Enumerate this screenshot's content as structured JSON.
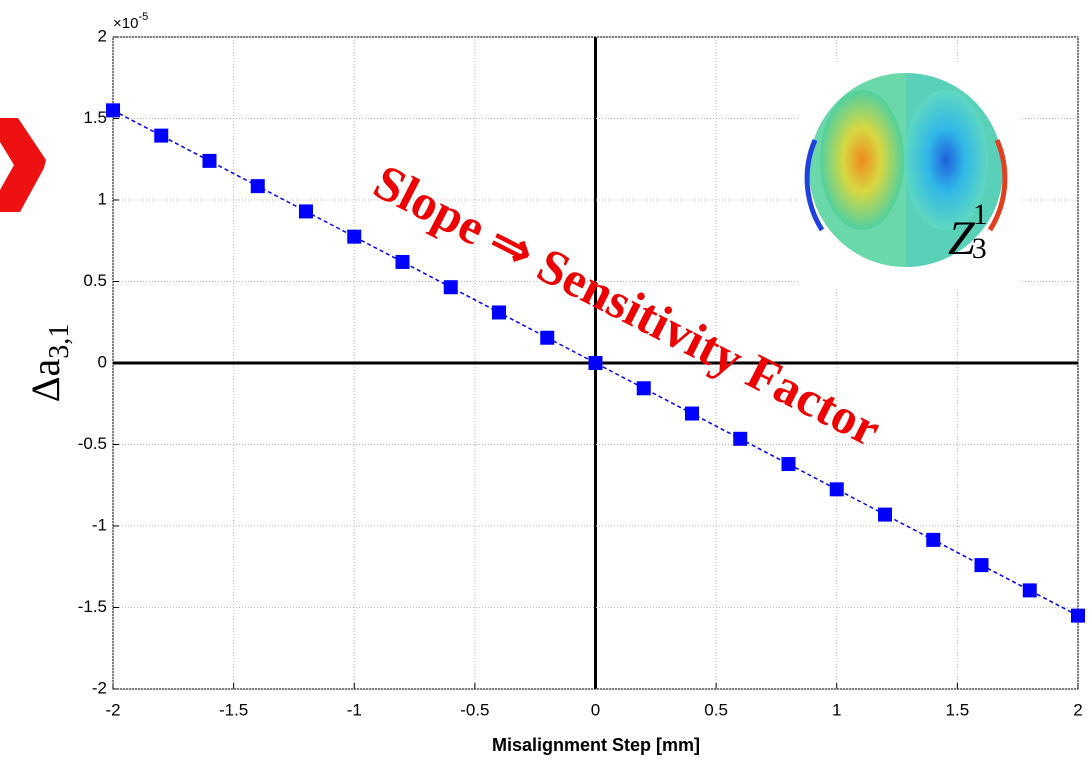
{
  "chart_data": {
    "type": "line",
    "xlabel": "Misalignment Step [mm]",
    "ylabel": {
      "text": "Δa",
      "subscript": "3,1"
    },
    "y_multiplier": {
      "base": "×10",
      "exponent": "-5"
    },
    "annotation": "Slope ⇒ Sensitivity Factor",
    "inset_label": {
      "text": "Z",
      "subscript": "3",
      "superscript": "1"
    },
    "x": [
      -2,
      -1.8,
      -1.6,
      -1.4,
      -1.2,
      -1,
      -0.8,
      -0.6,
      -0.4,
      -0.2,
      0,
      0.2,
      0.4,
      0.6,
      0.8,
      1,
      1.2,
      1.4,
      1.6,
      1.8,
      2
    ],
    "series": [
      {
        "color": "#0000ff",
        "values": [
          1.55,
          1.395,
          1.24,
          1.085,
          0.93,
          0.775,
          0.62,
          0.465,
          0.31,
          0.155,
          0,
          -0.155,
          -0.31,
          -0.465,
          -0.62,
          -0.775,
          -0.93,
          -1.085,
          -1.24,
          -1.395,
          -1.55
        ]
      }
    ],
    "xlim": [
      -2,
      2
    ],
    "xticks": [
      -2,
      -1.5,
      -1,
      -0.5,
      0,
      0.5,
      1,
      1.5,
      2
    ],
    "ylim": [
      -2,
      2
    ],
    "yticks": [
      -2,
      -1.5,
      -1,
      -0.5,
      0,
      0.5,
      1,
      1.5,
      2
    ],
    "grid": true
  }
}
